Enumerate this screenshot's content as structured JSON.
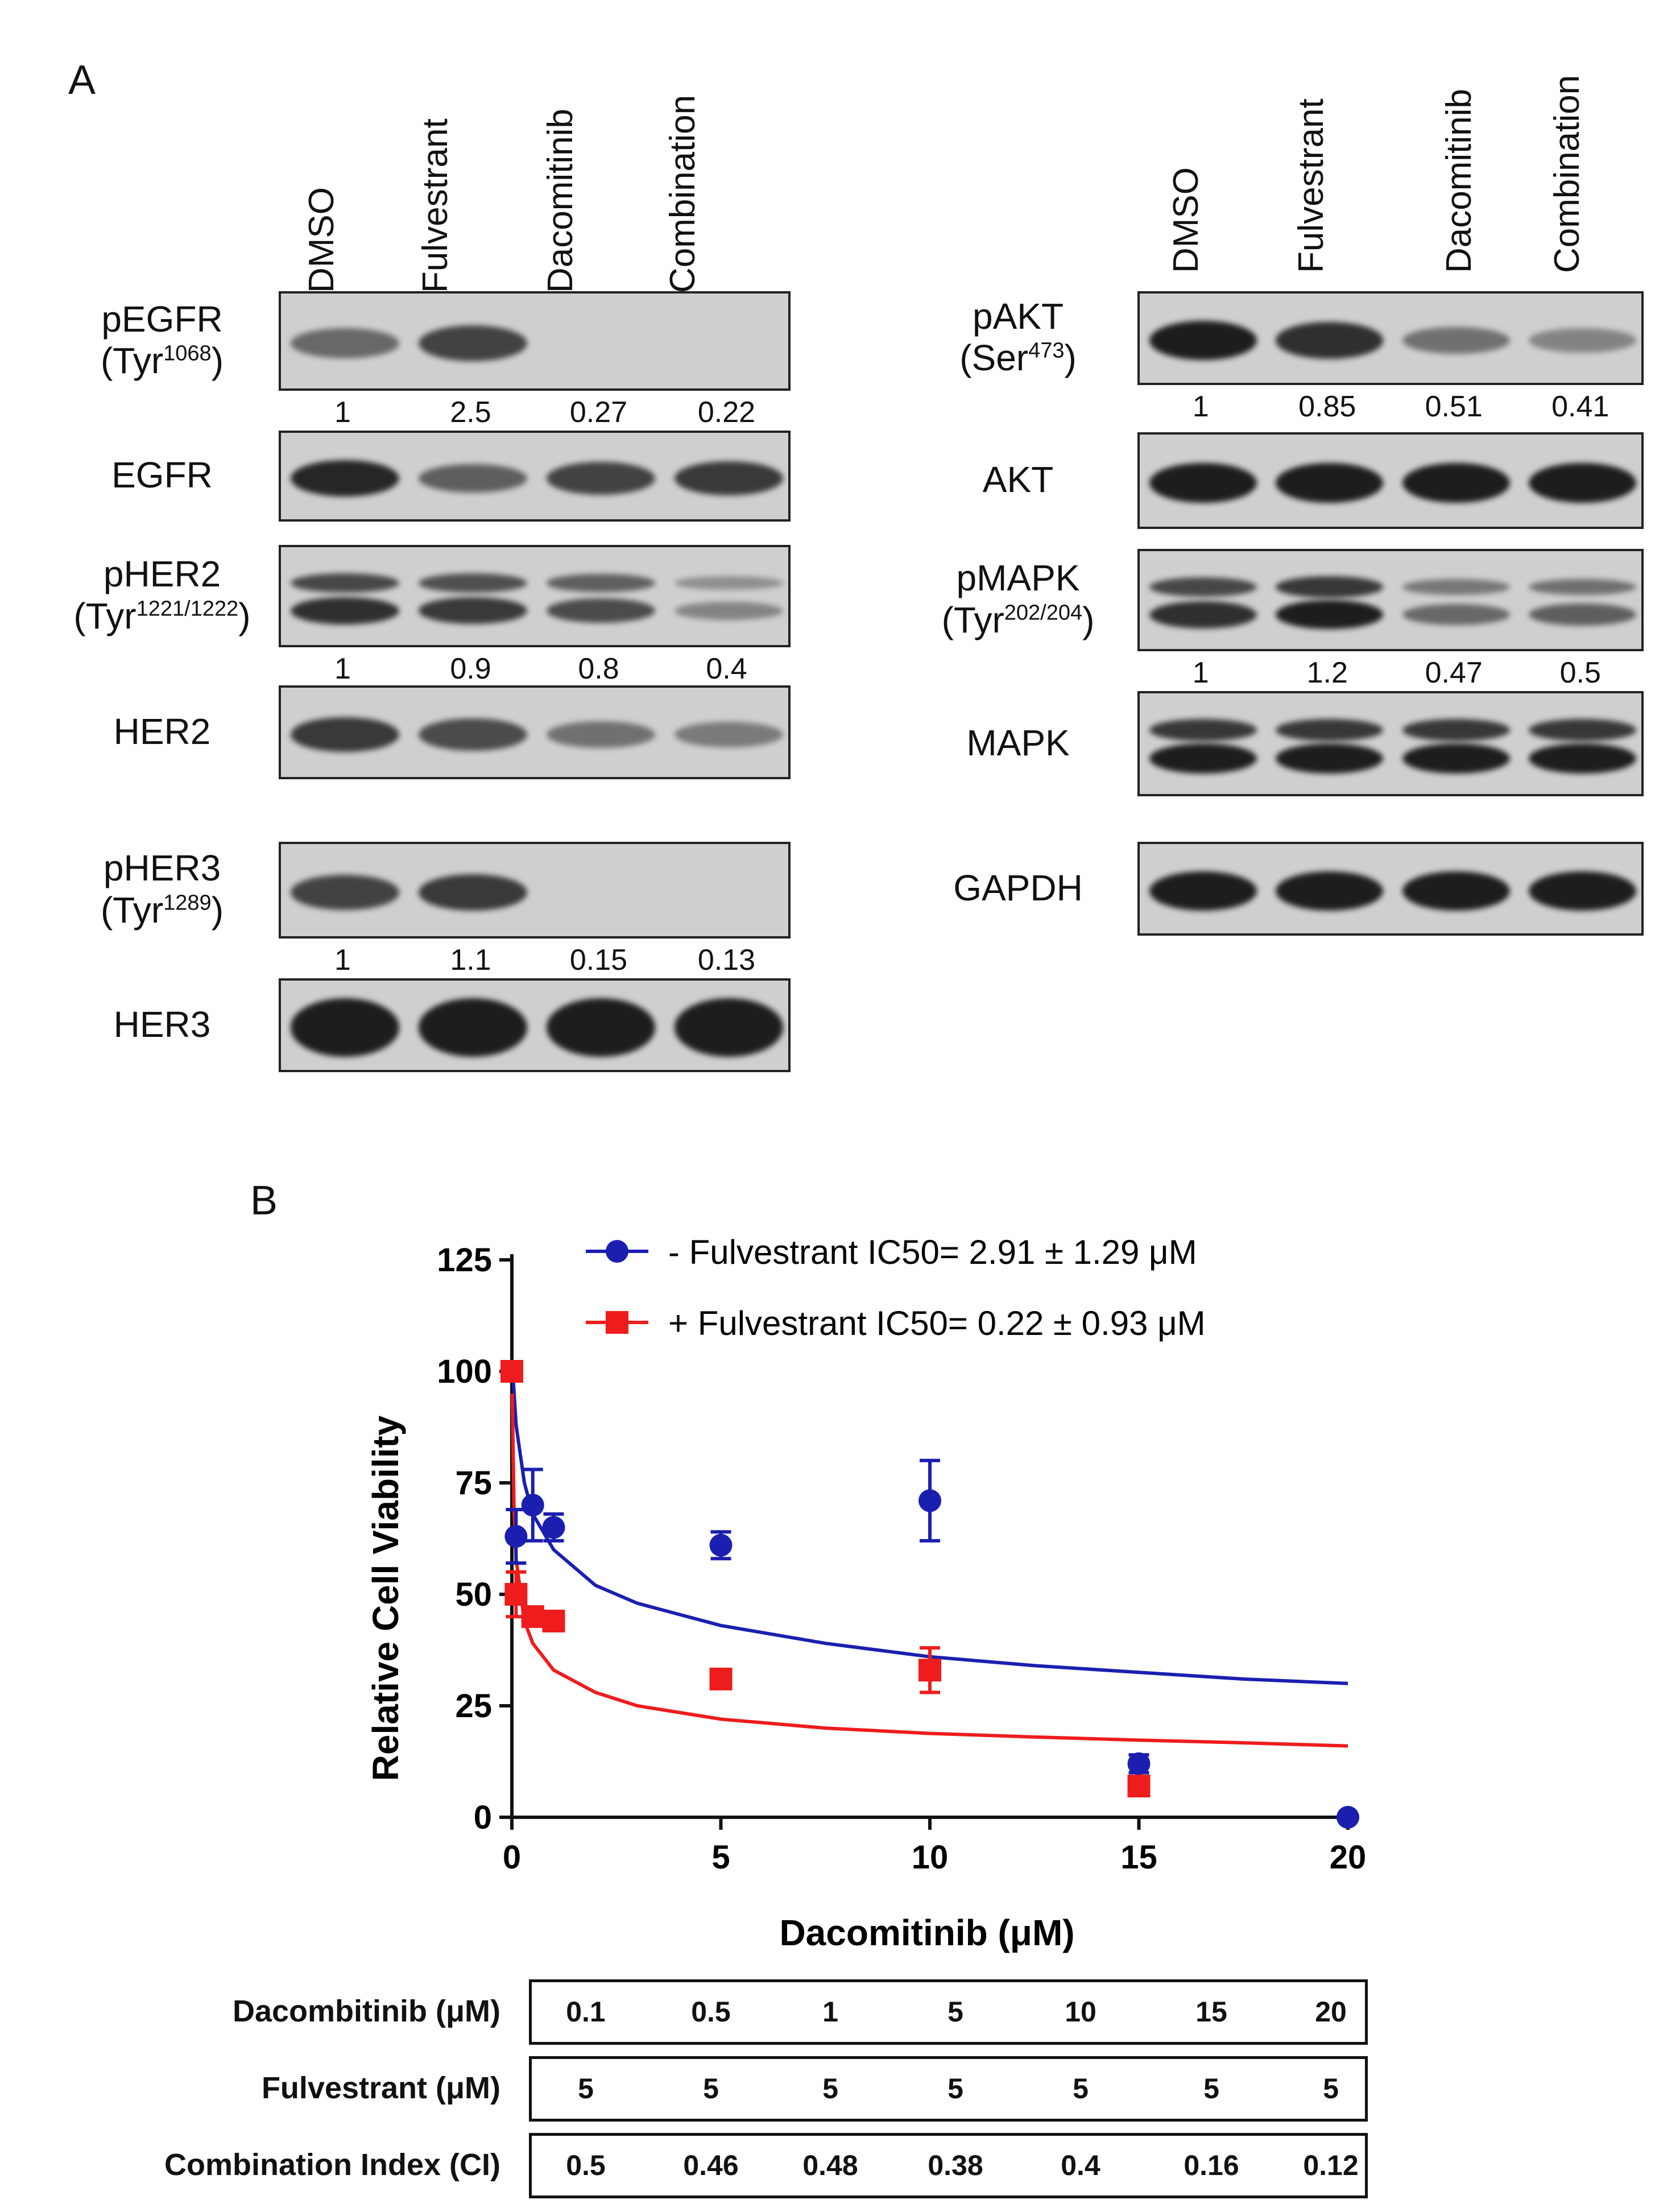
{
  "panelA": {
    "letter": "A",
    "lanes": [
      "DMSO",
      "Fulvestrant",
      "Dacomitinib",
      "Combination"
    ],
    "left_blots": [
      {
        "name": "pEGFR",
        "site": "Tyr",
        "sup": "1068",
        "quant": [
          "1",
          "2.5",
          "0.27",
          "0.22"
        ],
        "intensity": [
          0.55,
          0.75,
          0.03,
          0.02
        ],
        "double": false
      },
      {
        "name": "EGFR",
        "site": "",
        "sup": "",
        "quant": [],
        "intensity": [
          0.9,
          0.6,
          0.75,
          0.8
        ],
        "double": false
      },
      {
        "name": "pHER2",
        "site": "Tyr",
        "sup": "1221/1222",
        "quant": [
          "1",
          "0.9",
          "0.8",
          "0.4"
        ],
        "intensity": [
          0.85,
          0.8,
          0.7,
          0.4
        ],
        "double": true
      },
      {
        "name": "HER2",
        "site": "",
        "sup": "",
        "quant": [],
        "intensity": [
          0.8,
          0.7,
          0.5,
          0.45
        ],
        "double": false
      },
      {
        "name": "pHER3",
        "site": "Tyr",
        "sup": "1289",
        "quant": [
          "1",
          "1.1",
          "0.15",
          "0.13"
        ],
        "intensity": [
          0.75,
          0.8,
          0.02,
          0.02
        ],
        "double": false
      },
      {
        "name": "HER3",
        "site": "",
        "sup": "",
        "quant": [],
        "intensity": [
          1,
          1,
          1,
          1
        ],
        "double": false
      }
    ],
    "right_blots": [
      {
        "name": "pAKT",
        "site": "Ser",
        "sup": "473",
        "quant": [
          "1",
          "0.85",
          "0.51",
          "0.41"
        ],
        "intensity": [
          0.95,
          0.85,
          0.5,
          0.4
        ],
        "double": false
      },
      {
        "name": "AKT",
        "site": "",
        "sup": "",
        "quant": [],
        "intensity": [
          0.95,
          0.95,
          0.95,
          0.95
        ],
        "double": false
      },
      {
        "name": "pMAPK",
        "site": "Tyr",
        "sup": "202/204",
        "quant": [
          "1",
          "1.2",
          "0.47",
          "0.5"
        ],
        "intensity": [
          0.85,
          0.95,
          0.55,
          0.6
        ],
        "double": true
      },
      {
        "name": "MAPK",
        "site": "",
        "sup": "",
        "quant": [],
        "intensity": [
          0.95,
          0.95,
          0.95,
          0.95
        ],
        "double": true
      },
      {
        "name": "GAPDH",
        "site": "",
        "sup": "",
        "quant": [],
        "intensity": [
          0.95,
          0.95,
          0.95,
          0.95
        ],
        "double": false
      }
    ]
  },
  "panelB": {
    "letter": "B",
    "legend": [
      {
        "label": "-  Fulvestrant IC50= 2.91 ± 1.29 μM",
        "color": "#1b1fb0",
        "marker": "circle"
      },
      {
        "label": "+ Fulvestrant IC50= 0.22 ± 0.93 μM",
        "color": "#ee1c1c",
        "marker": "square"
      }
    ],
    "table": {
      "rows": [
        {
          "label": "Dacombitinib (μM)",
          "values": [
            "0.1",
            "0.5",
            "1",
            "5",
            "10",
            "15",
            "20"
          ]
        },
        {
          "label": "Fulvestrant (μM)",
          "values": [
            "5",
            "5",
            "5",
            "5",
            "5",
            "5",
            "5"
          ]
        },
        {
          "label": "Combination Index (CI)",
          "values": [
            "0.5",
            "0.46",
            "0.48",
            "0.38",
            "0.4",
            "0.16",
            "0.12"
          ]
        }
      ]
    }
  },
  "chart_data": {
    "type": "scatter",
    "xlabel": "Dacomitinib (μM)",
    "ylabel": "Relative Cell Viability",
    "xlim": [
      0,
      20
    ],
    "ylim": [
      0,
      125
    ],
    "xticks": [
      0,
      5,
      10,
      15,
      20
    ],
    "yticks": [
      0,
      25,
      50,
      75,
      100,
      125
    ],
    "series": [
      {
        "name": "-  Fulvestrant IC50= 2.91 ± 1.29 μM",
        "color": "#1b1fb0",
        "marker": "circle",
        "x": [
          0,
          0.1,
          0.5,
          1,
          5,
          10,
          15,
          20
        ],
        "y": [
          100,
          63,
          70,
          65,
          61,
          71,
          12,
          0
        ],
        "err": [
          2,
          6,
          8,
          3,
          3,
          9,
          2,
          0
        ],
        "fit": [
          [
            0.02,
            100
          ],
          [
            0.1,
            88
          ],
          [
            0.3,
            75
          ],
          [
            0.5,
            68
          ],
          [
            1,
            60
          ],
          [
            2,
            52
          ],
          [
            3,
            48
          ],
          [
            5,
            43
          ],
          [
            7.5,
            39
          ],
          [
            10,
            36
          ],
          [
            12.5,
            34
          ],
          [
            15,
            32.5
          ],
          [
            17.5,
            31
          ],
          [
            20,
            30
          ]
        ]
      },
      {
        "name": "+ Fulvestrant IC50= 0.22 ± 0.93 μM",
        "color": "#ee1c1c",
        "marker": "square",
        "x": [
          0,
          0.1,
          0.5,
          1,
          5,
          10,
          15
        ],
        "y": [
          100,
          50,
          45,
          44,
          31,
          33,
          7
        ],
        "err": [
          2,
          5,
          2,
          2,
          1,
          5,
          1
        ],
        "fit": [
          [
            0.01,
            95
          ],
          [
            0.05,
            70
          ],
          [
            0.1,
            58
          ],
          [
            0.3,
            44
          ],
          [
            0.5,
            39
          ],
          [
            1,
            33
          ],
          [
            2,
            28
          ],
          [
            3,
            25
          ],
          [
            5,
            22
          ],
          [
            7.5,
            20
          ],
          [
            10,
            18.8
          ],
          [
            12.5,
            18
          ],
          [
            15,
            17.3
          ],
          [
            17.5,
            16.7
          ],
          [
            20,
            16
          ]
        ]
      }
    ]
  }
}
